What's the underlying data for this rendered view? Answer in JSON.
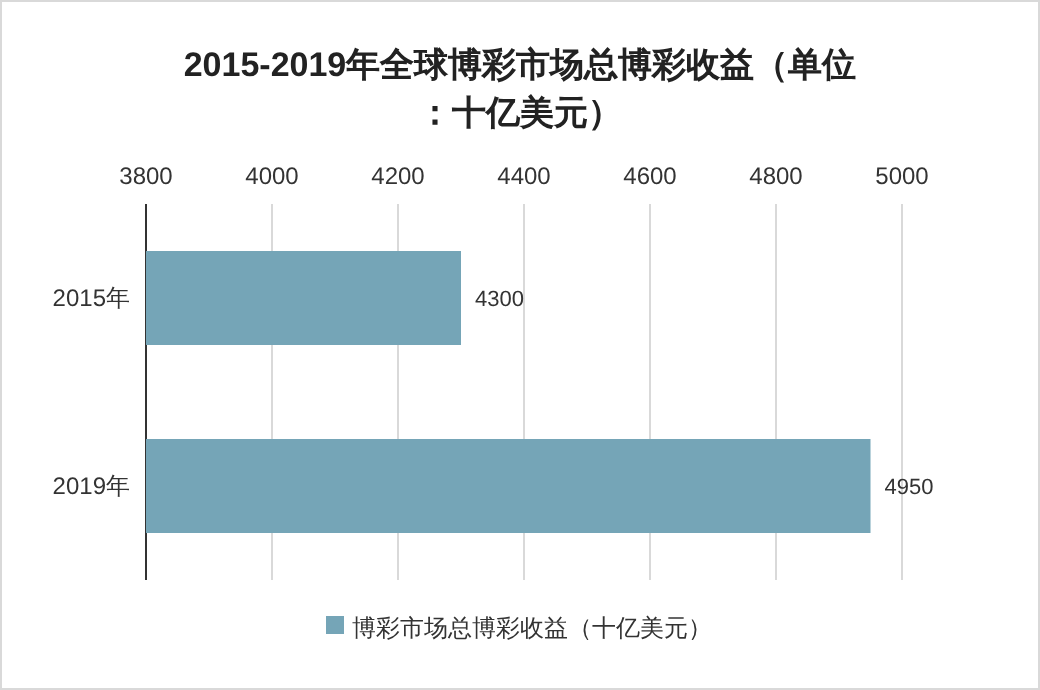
{
  "chart_data": {
    "type": "bar",
    "orientation": "horizontal",
    "title": "2015-2019年全球博彩市场总博彩收益（单位：十亿美元）",
    "categories": [
      "2015年",
      "2019年"
    ],
    "series": [
      {
        "name": "博彩市场总博彩收益（十亿美元）",
        "color": "#75a5b7",
        "values": [
          4300,
          4950
        ]
      }
    ],
    "xlim": [
      3800,
      5000
    ],
    "xticks": [
      3800,
      4000,
      4200,
      4400,
      4600,
      4800,
      5000
    ],
    "grid": "x",
    "legend": "bottom",
    "data_labels": true
  }
}
